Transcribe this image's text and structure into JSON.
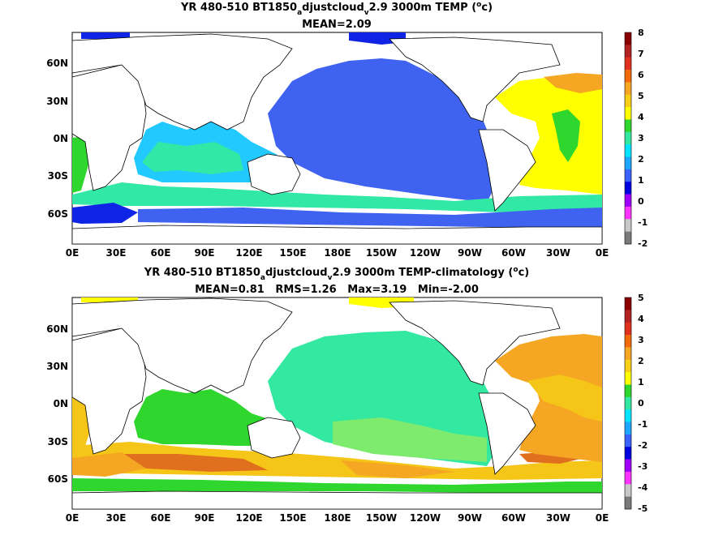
{
  "panels": [
    {
      "title_prefix": "YR 480-510 BT1850",
      "title_sub1": "a",
      "title_mid": "djustcloud",
      "title_sub2": "v",
      "title_suffix": "2.9 3000m TEMP (",
      "title_sup": "o",
      "title_unit": "c)",
      "stats": "MEAN=2.09",
      "colorbar": {
        "ticks": [
          "8",
          "7",
          "6",
          "5",
          "4",
          "3",
          "2",
          "1",
          "0",
          "-1",
          "-2"
        ],
        "colors": [
          "#8b0000",
          "#b22222",
          "#e0301e",
          "#f26a0c",
          "#f5a623",
          "#f7cf16",
          "#ffff00",
          "#2ed62e",
          "#33e8a0",
          "#00e5ff",
          "#1ea7ff",
          "#3a62ff",
          "#0000e0",
          "#a000ff",
          "#ff33ff",
          "#c8c8c8",
          "#7a7a7a"
        ]
      }
    },
    {
      "title_prefix": "YR 480-510 BT1850",
      "title_sub1": "a",
      "title_mid": "djustcloud",
      "title_sub2": "v",
      "title_suffix": "2.9 3000m TEMP-climatology (",
      "title_sup": "o",
      "title_unit": "c)",
      "stats": "MEAN=0.81   RMS=1.26   Max=3.19   Min=-2.00",
      "colorbar": {
        "ticks": [
          "5",
          "4",
          "3",
          "2",
          "1",
          "0",
          "-1",
          "-2",
          "-3",
          "-4",
          "-5"
        ],
        "colors": [
          "#8b0000",
          "#b22222",
          "#e0301e",
          "#f26a0c",
          "#f5a623",
          "#f7cf16",
          "#ffff00",
          "#2ed62e",
          "#33e8a0",
          "#00e5ff",
          "#1ea7ff",
          "#3a62ff",
          "#0000e0",
          "#a000ff",
          "#ff33ff",
          "#c8c8c8",
          "#7a7a7a"
        ]
      }
    }
  ],
  "axes": {
    "x_ticks": [
      "0E",
      "30E",
      "60E",
      "90E",
      "120E",
      "150E",
      "180E",
      "150W",
      "120W",
      "90W",
      "60W",
      "30W",
      "0E"
    ],
    "y_ticks": [
      "60N",
      "30N",
      "0N",
      "30S",
      "60S"
    ]
  },
  "fill_colors": {
    "land": "#ffffff",
    "coast": "#000000",
    "p1_pacific": "#3f63f0",
    "p1_indian": "#22c9ff",
    "p1_southern": "#31e8a6",
    "p1_atlantic": "#ffff00",
    "p1_deep": "#1024e6",
    "p2_pacific": "#33e8a0",
    "p2_indian": "#2ed62e",
    "p2_southern": "#f5c518",
    "p2_atlantic": "#f5a623",
    "p2_hot": "#e0701e"
  }
}
